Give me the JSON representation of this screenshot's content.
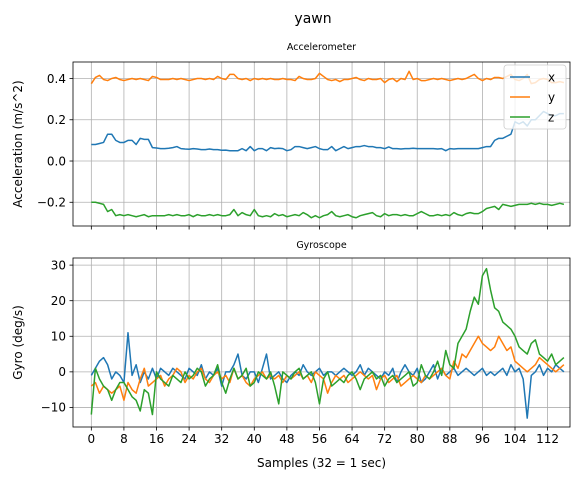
{
  "figure": {
    "suptitle": "yawn"
  },
  "chart_data": [
    {
      "type": "line",
      "title": "Accelerometer",
      "xlabel": "",
      "ylabel": "Acceleration (m/s^2)",
      "xlim": [
        -4.5,
        117.5
      ],
      "ylim": [
        -0.315,
        0.48
      ],
      "yticks": [
        -0.2,
        0.0,
        0.2,
        0.4
      ],
      "ytick_labels": [
        "−0.2",
        "0.0",
        "0.2",
        "0.4"
      ],
      "xticks": [
        0,
        8,
        16,
        24,
        32,
        40,
        48,
        56,
        64,
        72,
        80,
        88,
        96,
        104,
        112
      ],
      "xtick_labels_visible": false,
      "grid": true,
      "legend": "upper-right",
      "series": [
        {
          "name": "x",
          "color": "#1f77b4",
          "values": [
            0.08,
            0.08,
            0.085,
            0.09,
            0.13,
            0.13,
            0.1,
            0.09,
            0.09,
            0.1,
            0.1,
            0.08,
            0.11,
            0.105,
            0.105,
            0.065,
            0.063,
            0.06,
            0.06,
            0.062,
            0.065,
            0.07,
            0.06,
            0.058,
            0.057,
            0.06,
            0.058,
            0.055,
            0.055,
            0.058,
            0.055,
            0.055,
            0.052,
            0.053,
            0.05,
            0.05,
            0.05,
            0.06,
            0.05,
            0.07,
            0.05,
            0.06,
            0.06,
            0.05,
            0.065,
            0.06,
            0.062,
            0.06,
            0.05,
            0.055,
            0.07,
            0.07,
            0.065,
            0.06,
            0.065,
            0.07,
            0.06,
            0.055,
            0.055,
            0.07,
            0.05,
            0.06,
            0.07,
            0.06,
            0.065,
            0.07,
            0.07,
            0.075,
            0.07,
            0.07,
            0.065,
            0.065,
            0.06,
            0.068,
            0.06,
            0.06,
            0.058,
            0.06,
            0.06,
            0.062,
            0.06,
            0.06,
            0.06,
            0.06,
            0.06,
            0.058,
            0.06,
            0.05,
            0.06,
            0.058,
            0.06,
            0.06,
            0.06,
            0.06,
            0.06,
            0.06,
            0.065,
            0.07,
            0.07,
            0.1,
            0.11,
            0.11,
            0.12,
            0.13,
            0.19,
            0.18,
            0.19,
            0.17,
            0.2,
            0.2,
            0.22,
            0.24,
            0.23,
            0.22,
            0.22,
            0.23,
            0.23
          ]
        },
        {
          "name": "y",
          "color": "#ff7f0e",
          "values": [
            0.375,
            0.405,
            0.415,
            0.395,
            0.39,
            0.4,
            0.405,
            0.395,
            0.39,
            0.395,
            0.4,
            0.395,
            0.4,
            0.395,
            0.39,
            0.41,
            0.405,
            0.395,
            0.395,
            0.395,
            0.4,
            0.395,
            0.4,
            0.395,
            0.39,
            0.395,
            0.4,
            0.4,
            0.395,
            0.4,
            0.395,
            0.41,
            0.4,
            0.395,
            0.42,
            0.42,
            0.4,
            0.395,
            0.4,
            0.39,
            0.4,
            0.395,
            0.4,
            0.395,
            0.4,
            0.395,
            0.395,
            0.4,
            0.395,
            0.395,
            0.39,
            0.41,
            0.4,
            0.395,
            0.395,
            0.4,
            0.425,
            0.41,
            0.395,
            0.39,
            0.395,
            0.385,
            0.395,
            0.395,
            0.4,
            0.405,
            0.395,
            0.39,
            0.4,
            0.395,
            0.395,
            0.4,
            0.38,
            0.395,
            0.4,
            0.385,
            0.4,
            0.395,
            0.435,
            0.395,
            0.4,
            0.39,
            0.39,
            0.395,
            0.4,
            0.395,
            0.4,
            0.395,
            0.39,
            0.395,
            0.4,
            0.395,
            0.4,
            0.41,
            0.42,
            0.4,
            0.39,
            0.4,
            0.395,
            0.405,
            0.405,
            0.4,
            0.41,
            0.42,
            0.395,
            0.39,
            0.4,
            0.42,
            0.375,
            0.38,
            0.395,
            0.4,
            0.395,
            0.38,
            0.38,
            0.385,
            0.38
          ]
        },
        {
          "name": "z",
          "color": "#2ca02c",
          "values": [
            -0.2,
            -0.2,
            -0.205,
            -0.21,
            -0.245,
            -0.235,
            -0.265,
            -0.26,
            -0.265,
            -0.26,
            -0.265,
            -0.27,
            -0.265,
            -0.26,
            -0.27,
            -0.265,
            -0.265,
            -0.265,
            -0.265,
            -0.26,
            -0.265,
            -0.26,
            -0.265,
            -0.265,
            -0.26,
            -0.27,
            -0.26,
            -0.265,
            -0.265,
            -0.26,
            -0.265,
            -0.26,
            -0.265,
            -0.265,
            -0.26,
            -0.235,
            -0.265,
            -0.25,
            -0.26,
            -0.265,
            -0.235,
            -0.265,
            -0.27,
            -0.265,
            -0.27,
            -0.255,
            -0.265,
            -0.26,
            -0.27,
            -0.265,
            -0.26,
            -0.265,
            -0.25,
            -0.26,
            -0.275,
            -0.265,
            -0.275,
            -0.265,
            -0.26,
            -0.245,
            -0.265,
            -0.27,
            -0.265,
            -0.26,
            -0.27,
            -0.275,
            -0.265,
            -0.26,
            -0.255,
            -0.25,
            -0.265,
            -0.27,
            -0.255,
            -0.265,
            -0.26,
            -0.26,
            -0.265,
            -0.26,
            -0.265,
            -0.265,
            -0.255,
            -0.245,
            -0.255,
            -0.265,
            -0.265,
            -0.26,
            -0.265,
            -0.26,
            -0.265,
            -0.25,
            -0.26,
            -0.265,
            -0.255,
            -0.25,
            -0.255,
            -0.255,
            -0.245,
            -0.23,
            -0.225,
            -0.22,
            -0.235,
            -0.21,
            -0.215,
            -0.22,
            -0.215,
            -0.21,
            -0.21,
            -0.21,
            -0.205,
            -0.21,
            -0.205,
            -0.21,
            -0.21,
            -0.215,
            -0.21,
            -0.205,
            -0.21
          ]
        }
      ]
    },
    {
      "type": "line",
      "title": "Gyroscope",
      "xlabel": "Samples (32 = 1 sec)",
      "ylabel": "Gyro (deg/s)",
      "xlim": [
        -4.5,
        117.5
      ],
      "ylim": [
        -15.5,
        32
      ],
      "yticks": [
        -10,
        0,
        10,
        20,
        30
      ],
      "ytick_labels": [
        "−10",
        "0",
        "10",
        "20",
        "30"
      ],
      "xticks": [
        0,
        8,
        16,
        24,
        32,
        40,
        48,
        56,
        64,
        72,
        80,
        88,
        96,
        104,
        112
      ],
      "xtick_labels": [
        "0",
        "8",
        "16",
        "24",
        "32",
        "40",
        "48",
        "56",
        "64",
        "72",
        "80",
        "88",
        "96",
        "104",
        "112"
      ],
      "grid": true,
      "series": [
        {
          "name": "x",
          "color": "#1f77b4",
          "values": [
            -1,
            1,
            3,
            4,
            2,
            -2,
            0,
            -1,
            -3,
            11,
            -1,
            2,
            -3,
            0,
            -2,
            1,
            -2,
            1,
            0,
            -1,
            1,
            0,
            -1,
            -2,
            1,
            0,
            -1,
            2,
            -2,
            0,
            -1,
            1,
            -4,
            0,
            0,
            2,
            5,
            -1,
            -2,
            0,
            0,
            -3,
            1,
            5,
            -2,
            -1,
            0,
            -2,
            -3,
            -1,
            0,
            -1,
            2,
            0,
            -1,
            0,
            1,
            -1,
            0,
            0,
            -1,
            0,
            1,
            0,
            -1,
            0,
            2,
            -1,
            1,
            0,
            -1,
            -2,
            0,
            -1,
            1,
            -3,
            0,
            2,
            0,
            -1,
            1,
            -3,
            -2,
            0,
            2,
            -2,
            1,
            -1,
            0,
            1,
            -1,
            0,
            1,
            0,
            -1,
            0,
            1,
            -1,
            0,
            -1,
            0,
            1,
            -1,
            2,
            0,
            1,
            -2,
            -13,
            -1,
            0,
            2,
            -1,
            1,
            0,
            2,
            1,
            0
          ]
        },
        {
          "name": "y",
          "color": "#ff7f0e",
          "values": [
            -4,
            -3,
            -6,
            -4,
            -5,
            -6,
            -5,
            -4,
            -8,
            -3,
            -5,
            -6,
            -2,
            1,
            -4,
            -3,
            -2,
            -1,
            -4,
            -2,
            -1,
            1,
            0,
            -3,
            -1,
            -2,
            0,
            1,
            -2,
            -3,
            -1,
            0,
            -2,
            -1,
            -3,
            1,
            -2,
            -1,
            -3,
            -4,
            -2,
            -1,
            0,
            -2,
            -1,
            -2,
            -1,
            -3,
            -1,
            -2,
            -1,
            0,
            -2,
            -1,
            -3,
            0,
            -1,
            -2,
            -6,
            -3,
            -1,
            -2,
            -1,
            -3,
            -2,
            -1,
            0,
            -1,
            -2,
            -1,
            -5,
            -2,
            -1,
            -3,
            -2,
            -1,
            -4,
            -3,
            -2,
            -1,
            -2,
            -3,
            -1,
            -2,
            -1,
            0,
            1,
            -1,
            -2,
            3,
            1,
            5,
            4,
            6,
            8,
            10,
            8,
            7,
            6,
            7,
            10,
            8,
            6,
            7,
            3,
            2,
            1,
            0,
            1,
            2,
            4,
            3,
            2,
            1,
            0,
            1,
            2
          ]
        },
        {
          "name": "z",
          "color": "#2ca02c",
          "values": [
            -12,
            1,
            -2,
            -4,
            -5,
            -8,
            -5,
            -3,
            -3,
            -5,
            -7,
            -8,
            -11,
            -5,
            -6,
            -12,
            0,
            -2,
            -3,
            -4,
            -1,
            -2,
            -3,
            0,
            -2,
            -1,
            1,
            0,
            -4,
            -2,
            -1,
            2,
            -3,
            -6,
            -2,
            1,
            -2,
            -1,
            1,
            -4,
            -3,
            0,
            -1,
            -2,
            0,
            -4,
            -9,
            0,
            -1,
            -2,
            0,
            1,
            -2,
            -1,
            0,
            -3,
            -9,
            -2,
            0,
            -4,
            -3,
            -2,
            -3,
            -1,
            0,
            -2,
            -5,
            -2,
            -1,
            0,
            -2,
            -1,
            -4,
            -2,
            -1,
            -3,
            -2,
            -1,
            0,
            -4,
            -3,
            2,
            -1,
            -2,
            0,
            3,
            -1,
            6,
            2,
            1,
            8,
            10,
            12,
            17,
            21,
            19,
            27,
            29,
            23,
            18,
            17,
            14,
            13,
            12,
            10,
            7,
            6,
            5,
            8,
            9,
            5,
            4,
            3,
            5,
            2,
            3,
            4
          ]
        }
      ]
    }
  ]
}
